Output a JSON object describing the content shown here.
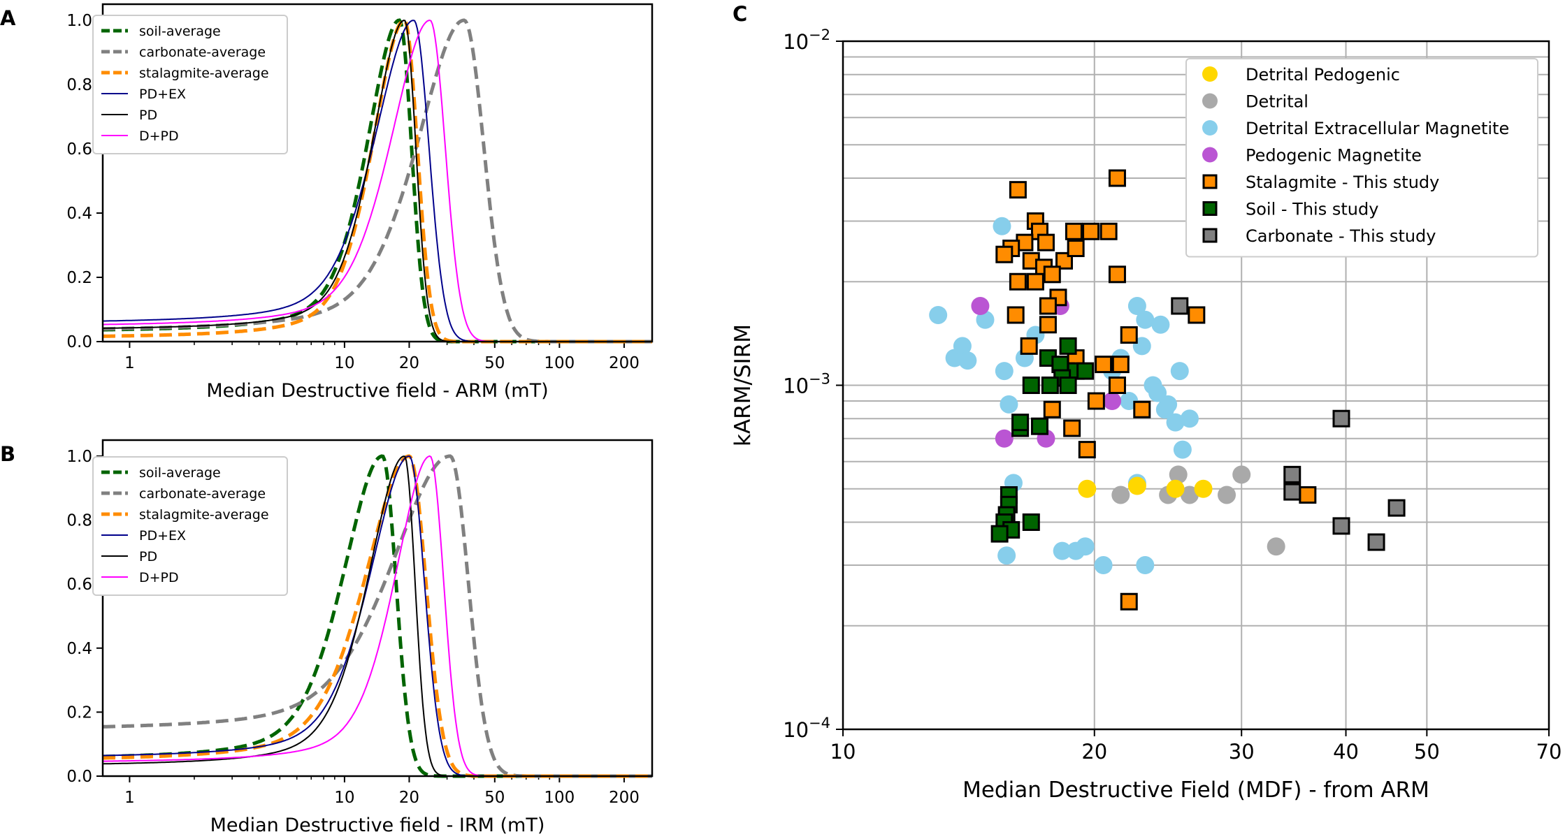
{
  "chart_data": [
    {
      "panel": "A",
      "type": "line",
      "xscale": "log",
      "xlabel": "Median Destructive field - ARM (mT)",
      "ylabel": "",
      "xlim": [
        0.75,
        270
      ],
      "ylim": [
        0,
        1.05
      ],
      "xticks": [
        1,
        10,
        20,
        50,
        100,
        200
      ],
      "yticks": [
        "0.0",
        "0.2",
        "0.4",
        "0.6",
        "0.8",
        "1.0"
      ],
      "legend_position": "upper-left",
      "series": [
        {
          "name": "soil-average",
          "color": "#006400",
          "style": "dashed",
          "base": 0.03,
          "peak": 18,
          "wl": 0.22,
          "wr": 0.08
        },
        {
          "name": "carbonate-average",
          "color": "#808080",
          "style": "dashed",
          "base": 0.03,
          "peak": 36,
          "wl": 0.32,
          "wr": 0.13
        },
        {
          "name": "stalagmite-average",
          "color": "#FF8C00",
          "style": "dashed",
          "base": 0.01,
          "peak": 19,
          "wl": 0.22,
          "wr": 0.085
        },
        {
          "name": "PD+EX",
          "color": "#00008B",
          "style": "solid",
          "base": 0.055,
          "peak": 21,
          "wl": 0.27,
          "wr": 0.1
        },
        {
          "name": "PD",
          "color": "#000000",
          "style": "solid",
          "base": 0.035,
          "peak": 19,
          "wl": 0.22,
          "wr": 0.075
        },
        {
          "name": "D+PD",
          "color": "#FF00FF",
          "style": "solid",
          "base": 0.045,
          "peak": 25,
          "wl": 0.27,
          "wr": 0.1
        }
      ]
    },
    {
      "panel": "B",
      "type": "line",
      "xscale": "log",
      "xlabel": "Median Destructive field - IRM (mT)",
      "ylabel": "",
      "xlim": [
        0.75,
        270
      ],
      "ylim": [
        0,
        1.05
      ],
      "xticks": [
        1,
        10,
        20,
        50,
        100,
        200
      ],
      "yticks": [
        "0.0",
        "0.2",
        "0.4",
        "0.6",
        "0.8",
        "1.0"
      ],
      "legend_position": "upper-left",
      "series": [
        {
          "name": "soil-average",
          "color": "#006400",
          "style": "dashed",
          "base": 0.05,
          "peak": 15,
          "wl": 0.27,
          "wr": 0.09
        },
        {
          "name": "carbonate-average",
          "color": "#808080",
          "style": "dashed",
          "base": 0.14,
          "peak": 31,
          "wl": 0.4,
          "wr": 0.12
        },
        {
          "name": "stalagmite-average",
          "color": "#FF8C00",
          "style": "dashed",
          "base": 0.045,
          "peak": 20,
          "wl": 0.3,
          "wr": 0.11
        },
        {
          "name": "PD+EX",
          "color": "#00008B",
          "style": "solid",
          "base": 0.055,
          "peak": 20,
          "wl": 0.27,
          "wr": 0.1
        },
        {
          "name": "PD",
          "color": "#000000",
          "style": "solid",
          "base": 0.03,
          "peak": 19,
          "wl": 0.25,
          "wr": 0.07
        },
        {
          "name": "D+PD",
          "color": "#FF00FF",
          "style": "solid",
          "base": 0.04,
          "peak": 25,
          "wl": 0.24,
          "wr": 0.09
        }
      ]
    },
    {
      "panel": "C",
      "type": "scatter",
      "xscale": "log",
      "yscale": "log",
      "xlabel": "Median Destructive Field (MDF) - from ARM",
      "ylabel": "kARM/SIRM",
      "xlim": [
        10,
        70
      ],
      "ylim": [
        0.0001,
        0.01
      ],
      "xticks": [
        "10",
        "20",
        "30",
        "40",
        "50",
        "70"
      ],
      "ytick_labels": [
        {
          "base": "10",
          "exp": "−2"
        },
        {
          "base": "10",
          "exp": "−3"
        },
        {
          "base": "10",
          "exp": "−4"
        }
      ],
      "legend_position": "upper-right",
      "series": [
        {
          "name": "Detrital Pedogenic",
          "marker": "circle",
          "color": "#FFD700",
          "points": [
            [
              19.6,
              0.0005
            ],
            [
              22.5,
              0.00051
            ],
            [
              25,
              0.0005
            ],
            [
              27,
              0.0005
            ]
          ]
        },
        {
          "name": "Detrital",
          "marker": "circle",
          "color": "#A9A9A9",
          "points": [
            [
              21.5,
              0.00048
            ],
            [
              24.5,
              0.00048
            ],
            [
              25.2,
              0.00055
            ],
            [
              26,
              0.00048
            ],
            [
              28.8,
              0.00048
            ],
            [
              30,
              0.00055
            ],
            [
              33,
              0.00034
            ]
          ]
        },
        {
          "name": "Detrital Extracellular Magnetite",
          "marker": "circle",
          "color": "#87CEEB",
          "points": [
            [
              13,
              0.0016
            ],
            [
              13.6,
              0.0012
            ],
            [
              13.9,
              0.0013
            ],
            [
              14.1,
              0.00118
            ],
            [
              14.8,
              0.00155
            ],
            [
              15.5,
              0.0029
            ],
            [
              15.6,
              0.0011
            ],
            [
              15.8,
              0.00088
            ],
            [
              16,
              0.00052
            ],
            [
              15.7,
              0.00032
            ],
            [
              16.5,
              0.0012
            ],
            [
              17,
              0.0014
            ],
            [
              18.3,
              0.00033
            ],
            [
              19,
              0.00033
            ],
            [
              19.5,
              0.00034
            ],
            [
              20.5,
              0.0003
            ],
            [
              21,
              0.0011
            ],
            [
              21.5,
              0.0012
            ],
            [
              22,
              0.0009
            ],
            [
              22.5,
              0.0017
            ],
            [
              22.8,
              0.0013
            ],
            [
              23,
              0.00155
            ],
            [
              23.5,
              0.001
            ],
            [
              23.8,
              0.00095
            ],
            [
              24,
              0.0015
            ],
            [
              24.3,
              0.00085
            ],
            [
              24.5,
              0.00088
            ],
            [
              25,
              0.00078
            ],
            [
              25.3,
              0.0011
            ],
            [
              25.5,
              0.00065
            ],
            [
              26,
              0.0008
            ],
            [
              22.5,
              0.00052
            ],
            [
              23,
              0.0003
            ]
          ]
        },
        {
          "name": "Pedogenic Magnetite",
          "marker": "circle",
          "color": "#BA55D3",
          "points": [
            [
              14.6,
              0.0017
            ],
            [
              15.6,
              0.0007
            ],
            [
              17.5,
              0.0007
            ],
            [
              18.2,
              0.0017
            ],
            [
              21,
              0.0009
            ]
          ]
        },
        {
          "name": "Stalagmite - This study",
          "marker": "square",
          "color": "#FF8C00",
          "points": [
            [
              16.2,
              0.0037
            ],
            [
              21.3,
              0.004
            ],
            [
              17,
              0.003
            ],
            [
              17.2,
              0.0028
            ],
            [
              17.5,
              0.0026
            ],
            [
              16.5,
              0.0026
            ],
            [
              15.9,
              0.0025
            ],
            [
              15.6,
              0.0024
            ],
            [
              16.8,
              0.0023
            ],
            [
              17.4,
              0.0022
            ],
            [
              18.4,
              0.0023
            ],
            [
              19,
              0.0025
            ],
            [
              19.8,
              0.0028
            ],
            [
              18.9,
              0.0028
            ],
            [
              20.8,
              0.0028
            ],
            [
              16.2,
              0.002
            ],
            [
              17,
              0.002
            ],
            [
              17.8,
              0.0021
            ],
            [
              18.1,
              0.0018
            ],
            [
              17.6,
              0.0017
            ],
            [
              16.1,
              0.0016
            ],
            [
              17.6,
              0.0015
            ],
            [
              16.7,
              0.0013
            ],
            [
              21.3,
              0.0021
            ],
            [
              22,
              0.0014
            ],
            [
              21.5,
              0.00115
            ],
            [
              20.5,
              0.00115
            ],
            [
              19,
              0.0012
            ],
            [
              18.5,
              0.0011
            ],
            [
              21.3,
              0.001
            ],
            [
              20.1,
              0.0009
            ],
            [
              22.8,
              0.00085
            ],
            [
              17.8,
              0.00085
            ],
            [
              18.8,
              0.00075
            ],
            [
              19.6,
              0.00065
            ],
            [
              22,
              0.000235
            ],
            [
              26.5,
              0.0016
            ],
            [
              36,
              0.00048
            ]
          ]
        },
        {
          "name": "Soil - This study",
          "marker": "square",
          "color": "#006400",
          "points": [
            [
              17.6,
              0.0012
            ],
            [
              18.6,
              0.0013
            ],
            [
              18.2,
              0.00115
            ],
            [
              19,
              0.0011
            ],
            [
              18.3,
              0.00105
            ],
            [
              19.5,
              0.0011
            ],
            [
              18.6,
              0.001
            ],
            [
              17.7,
              0.001
            ],
            [
              16.8,
              0.001
            ],
            [
              16.3,
              0.00075
            ],
            [
              16.3,
              0.00078
            ],
            [
              17.2,
              0.00076
            ],
            [
              15.8,
              0.00048
            ],
            [
              15.8,
              0.00045
            ],
            [
              15.7,
              0.00042
            ],
            [
              15.6,
              0.0004
            ],
            [
              15.9,
              0.00038
            ],
            [
              16.8,
              0.0004
            ],
            [
              15.4,
              0.00037
            ]
          ]
        },
        {
          "name": "Carbonate - This study",
          "marker": "square",
          "color": "#808080",
          "points": [
            [
              25.3,
              0.0017
            ],
            [
              39.5,
              0.0008
            ],
            [
              34.5,
              0.00055
            ],
            [
              34.5,
              0.00049
            ],
            [
              39.5,
              0.00039
            ],
            [
              43.5,
              0.00035
            ],
            [
              46,
              0.00044
            ]
          ]
        }
      ]
    }
  ]
}
